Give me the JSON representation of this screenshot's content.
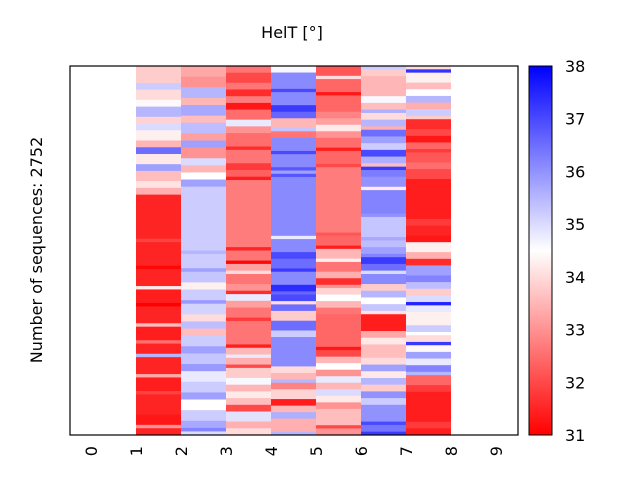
{
  "chart_data": {
    "type": "heatmap",
    "title": "HelT [°]",
    "xlabel": "",
    "ylabel": "Number of sequences: 2752",
    "n_rows": 2752,
    "x_ticks": [
      "0",
      "1",
      "2",
      "3",
      "4",
      "5",
      "6",
      "7",
      "8",
      "9"
    ],
    "x_range": [
      0,
      9
    ],
    "colorbar": {
      "min": 31,
      "max": 38,
      "ticks": [
        "31",
        "32",
        "33",
        "34",
        "35",
        "36",
        "37",
        "38"
      ],
      "colormap": "bwr_r",
      "low_color": "#ff0000",
      "mid_color": "#ffffff",
      "high_color": "#0000ff"
    },
    "columns": [
      {
        "x_start": 1,
        "x_end": 2,
        "segments": [
          [
            0.05,
            33.8
          ],
          [
            0.02,
            35.2
          ],
          [
            0.03,
            34.0
          ],
          [
            0.02,
            34.4
          ],
          [
            0.03,
            35.5
          ],
          [
            0.02,
            33.9
          ],
          [
            0.02,
            35.0
          ],
          [
            0.03,
            34.3
          ],
          [
            0.02,
            33.5
          ],
          [
            0.02,
            36.5
          ],
          [
            0.03,
            34.2
          ],
          [
            0.02,
            35.8
          ],
          [
            0.03,
            33.6
          ],
          [
            0.02,
            34.1
          ],
          [
            0.02,
            33.4
          ],
          [
            0.13,
            31.5
          ],
          [
            0.01,
            31.9
          ],
          [
            0.07,
            31.5
          ],
          [
            0.01,
            31.1
          ],
          [
            0.05,
            31.5
          ],
          [
            0.01,
            34.2
          ],
          [
            0.04,
            31.4
          ],
          [
            0.01,
            31.0
          ],
          [
            0.05,
            31.5
          ],
          [
            0.01,
            33.6
          ],
          [
            0.04,
            31.4
          ],
          [
            0.01,
            32.5
          ],
          [
            0.03,
            31.5
          ],
          [
            0.01,
            35.5
          ],
          [
            0.05,
            31.5
          ],
          [
            0.01,
            33.3
          ],
          [
            0.04,
            31.4
          ],
          [
            0.01,
            31.9
          ],
          [
            0.06,
            31.5
          ],
          [
            0.03,
            31.3
          ],
          [
            0.01,
            33.0
          ],
          [
            0.02,
            31.5
          ]
        ]
      },
      {
        "x_start": 2,
        "x_end": 3,
        "segments": [
          [
            0.03,
            33.3
          ],
          [
            0.03,
            33.0
          ],
          [
            0.03,
            35.5
          ],
          [
            0.02,
            33.5
          ],
          [
            0.03,
            35.7
          ],
          [
            0.02,
            33.6
          ],
          [
            0.03,
            35.4
          ],
          [
            0.02,
            33.2
          ],
          [
            0.02,
            35.8
          ],
          [
            0.03,
            33.0
          ],
          [
            0.02,
            35.0
          ],
          [
            0.02,
            33.5
          ],
          [
            0.02,
            34.5
          ],
          [
            0.02,
            35.8
          ],
          [
            0.18,
            35.2
          ],
          [
            0.01,
            35.5
          ],
          [
            0.04,
            35.2
          ],
          [
            0.01,
            35.8
          ],
          [
            0.03,
            35.3
          ],
          [
            0.02,
            34.3
          ],
          [
            0.03,
            35.2
          ],
          [
            0.01,
            35.9
          ],
          [
            0.03,
            35.1
          ],
          [
            0.02,
            34.0
          ],
          [
            0.02,
            35.4
          ],
          [
            0.02,
            33.6
          ],
          [
            0.03,
            35.2
          ],
          [
            0.02,
            35.8
          ],
          [
            0.03,
            35.3
          ],
          [
            0.02,
            35.9
          ],
          [
            0.03,
            34.8
          ],
          [
            0.03,
            35.2
          ],
          [
            0.02,
            35.8
          ],
          [
            0.03,
            34.5
          ],
          [
            0.03,
            35.2
          ],
          [
            0.02,
            35.7
          ],
          [
            0.01,
            36.2
          ],
          [
            0.01,
            35.0
          ]
        ]
      },
      {
        "x_start": 3,
        "x_end": 4,
        "segments": [
          [
            0.02,
            32.6
          ],
          [
            0.03,
            32.0
          ],
          [
            0.02,
            32.6
          ],
          [
            0.02,
            31.6
          ],
          [
            0.02,
            32.7
          ],
          [
            0.02,
            31.3
          ],
          [
            0.03,
            32.5
          ],
          [
            0.02,
            34.8
          ],
          [
            0.02,
            33.0
          ],
          [
            0.04,
            32.5
          ],
          [
            0.01,
            31.6
          ],
          [
            0.04,
            32.6
          ],
          [
            0.02,
            31.8
          ],
          [
            0.02,
            32.3
          ],
          [
            0.01,
            31.4
          ],
          [
            0.2,
            32.7
          ],
          [
            0.01,
            31.5
          ],
          [
            0.03,
            32.6
          ],
          [
            0.01,
            31.1
          ],
          [
            0.02,
            33.2
          ],
          [
            0.01,
            34.0
          ],
          [
            0.03,
            32.6
          ],
          [
            0.02,
            33.0
          ],
          [
            0.01,
            31.6
          ],
          [
            0.02,
            34.8
          ],
          [
            0.02,
            33.2
          ],
          [
            0.03,
            32.6
          ],
          [
            0.01,
            31.8
          ],
          [
            0.07,
            32.6
          ],
          [
            0.01,
            31.4
          ],
          [
            0.02,
            33.5
          ],
          [
            0.01,
            34.8
          ],
          [
            0.02,
            33.4
          ],
          [
            0.01,
            32.0
          ],
          [
            0.03,
            33.8
          ],
          [
            0.02,
            34.6
          ],
          [
            0.02,
            33.5
          ],
          [
            0.02,
            34.2
          ],
          [
            0.02,
            33.6
          ],
          [
            0.02,
            32.0
          ],
          [
            0.03,
            34.9
          ],
          [
            0.02,
            33.4
          ],
          [
            0.02,
            34.0
          ]
        ]
      },
      {
        "x_start": 4,
        "x_end": 5,
        "segments": [
          [
            0.02,
            34.6
          ],
          [
            0.05,
            36.1
          ],
          [
            0.01,
            37.0
          ],
          [
            0.04,
            36.1
          ],
          [
            0.02,
            37.2
          ],
          [
            0.02,
            36.6
          ],
          [
            0.03,
            33.5
          ],
          [
            0.01,
            35.3
          ],
          [
            0.02,
            32.6
          ],
          [
            0.04,
            36.1
          ],
          [
            0.01,
            37.0
          ],
          [
            0.04,
            36.1
          ],
          [
            0.01,
            36.8
          ],
          [
            0.01,
            35.8
          ],
          [
            0.01,
            36.8
          ],
          [
            0.18,
            36.1
          ],
          [
            0.01,
            34.8
          ],
          [
            0.04,
            36.1
          ],
          [
            0.02,
            37.0
          ],
          [
            0.03,
            36.5
          ],
          [
            0.01,
            37.2
          ],
          [
            0.04,
            36.1
          ],
          [
            0.02,
            37.4
          ],
          [
            0.01,
            36.6
          ],
          [
            0.02,
            37.0
          ],
          [
            0.01,
            34.0
          ],
          [
            0.02,
            36.5
          ],
          [
            0.03,
            33.8
          ],
          [
            0.03,
            36.5
          ],
          [
            0.02,
            35.2
          ],
          [
            0.09,
            36.1
          ],
          [
            0.02,
            34.0
          ],
          [
            0.02,
            33.5
          ],
          [
            0.01,
            35.5
          ],
          [
            0.02,
            32.8
          ],
          [
            0.03,
            33.9
          ],
          [
            0.02,
            31.4
          ],
          [
            0.02,
            33.5
          ],
          [
            0.02,
            35.6
          ],
          [
            0.04,
            33.4
          ],
          [
            0.01,
            35.5
          ]
        ]
      },
      {
        "x_start": 5,
        "x_end": 6,
        "segments": [
          [
            0.03,
            32.2
          ],
          [
            0.01,
            34.0
          ],
          [
            0.04,
            32.4
          ],
          [
            0.01,
            31.3
          ],
          [
            0.05,
            32.4
          ],
          [
            0.02,
            32.8
          ],
          [
            0.02,
            33.2
          ],
          [
            0.02,
            34.2
          ],
          [
            0.02,
            33.0
          ],
          [
            0.03,
            32.5
          ],
          [
            0.01,
            31.4
          ],
          [
            0.04,
            32.4
          ],
          [
            0.01,
            32.0
          ],
          [
            0.2,
            32.7
          ],
          [
            0.01,
            32.2
          ],
          [
            0.03,
            32.4
          ],
          [
            0.01,
            31.4
          ],
          [
            0.03,
            33.5
          ],
          [
            0.01,
            34.3
          ],
          [
            0.03,
            32.6
          ],
          [
            0.02,
            33.4
          ],
          [
            0.02,
            31.6
          ],
          [
            0.01,
            33.0
          ],
          [
            0.02,
            33.9
          ],
          [
            0.02,
            34.5
          ],
          [
            0.02,
            33.5
          ],
          [
            0.02,
            32.6
          ],
          [
            0.1,
            32.4
          ],
          [
            0.01,
            31.3
          ],
          [
            0.02,
            32.0
          ],
          [
            0.02,
            33.5
          ],
          [
            0.02,
            34.5
          ],
          [
            0.02,
            33.0
          ],
          [
            0.02,
            34.8
          ],
          [
            0.02,
            33.5
          ],
          [
            0.02,
            35.0
          ],
          [
            0.02,
            34.2
          ],
          [
            0.02,
            33.0
          ],
          [
            0.05,
            33.6
          ],
          [
            0.01,
            32.0
          ],
          [
            0.02,
            33.0
          ]
        ]
      },
      {
        "x_start": 6,
        "x_end": 7,
        "segments": [
          [
            0.01,
            35.2
          ],
          [
            0.02,
            33.8
          ],
          [
            0.06,
            33.5
          ],
          [
            0.02,
            34.6
          ],
          [
            0.02,
            33.6
          ],
          [
            0.01,
            35.6
          ],
          [
            0.02,
            34.0
          ],
          [
            0.02,
            35.5
          ],
          [
            0.01,
            33.4
          ],
          [
            0.02,
            36.5
          ],
          [
            0.02,
            35.8
          ],
          [
            0.02,
            35.2
          ],
          [
            0.02,
            37.0
          ],
          [
            0.02,
            35.6
          ],
          [
            0.01,
            33.6
          ],
          [
            0.01,
            37.2
          ],
          [
            0.02,
            36.3
          ],
          [
            0.03,
            36.0
          ],
          [
            0.01,
            34.2
          ],
          [
            0.07,
            36.2
          ],
          [
            0.01,
            36.0
          ],
          [
            0.06,
            35.3
          ],
          [
            0.01,
            35.7
          ],
          [
            0.02,
            35.4
          ],
          [
            0.02,
            35.8
          ],
          [
            0.01,
            36.2
          ],
          [
            0.02,
            37.2
          ],
          [
            0.02,
            36.5
          ],
          [
            0.01,
            35.0
          ],
          [
            0.03,
            36.1
          ],
          [
            0.02,
            33.8
          ],
          [
            0.02,
            35.5
          ],
          [
            0.02,
            34.5
          ],
          [
            0.02,
            35.3
          ],
          [
            0.01,
            34.1
          ],
          [
            0.05,
            31.4
          ],
          [
            0.02,
            33.3
          ],
          [
            0.02,
            34.2
          ],
          [
            0.04,
            33.6
          ],
          [
            0.02,
            34.0
          ],
          [
            0.02,
            35.8
          ],
          [
            0.02,
            34.2
          ],
          [
            0.02,
            35.5
          ],
          [
            0.02,
            33.8
          ],
          [
            0.02,
            36.0
          ],
          [
            0.02,
            35.2
          ],
          [
            0.05,
            36.0
          ],
          [
            0.01,
            37.0
          ],
          [
            0.02,
            36.4
          ],
          [
            0.01,
            37.2
          ]
        ]
      },
      {
        "x_start": 7,
        "x_end": 8,
        "segments": [
          [
            0.01,
            34.0
          ],
          [
            0.01,
            37.3
          ],
          [
            0.03,
            34.3
          ],
          [
            0.02,
            33.6
          ],
          [
            0.02,
            34.5
          ],
          [
            0.02,
            35.5
          ],
          [
            0.02,
            33.4
          ],
          [
            0.02,
            35.2
          ],
          [
            0.01,
            33.8
          ],
          [
            0.03,
            31.6
          ],
          [
            0.02,
            32.0
          ],
          [
            0.02,
            31.3
          ],
          [
            0.02,
            32.4
          ],
          [
            0.01,
            31.8
          ],
          [
            0.03,
            32.2
          ],
          [
            0.02,
            32.5
          ],
          [
            0.03,
            32.0
          ],
          [
            0.12,
            31.4
          ],
          [
            0.02,
            31.8
          ],
          [
            0.03,
            31.5
          ],
          [
            0.02,
            31.3
          ],
          [
            0.03,
            34.3
          ],
          [
            0.02,
            33.4
          ],
          [
            0.02,
            31.6
          ],
          [
            0.03,
            35.8
          ],
          [
            0.02,
            36.2
          ],
          [
            0.02,
            35.4
          ],
          [
            0.02,
            33.8
          ],
          [
            0.02,
            35.0
          ],
          [
            0.01,
            37.5
          ],
          [
            0.02,
            34.8
          ],
          [
            0.04,
            34.3
          ],
          [
            0.02,
            35.2
          ],
          [
            0.01,
            34.5
          ],
          [
            0.02,
            34.0
          ],
          [
            0.01,
            37.2
          ],
          [
            0.02,
            34.4
          ],
          [
            0.02,
            35.8
          ],
          [
            0.02,
            34.8
          ],
          [
            0.02,
            36.2
          ],
          [
            0.01,
            35.5
          ],
          [
            0.03,
            32.4
          ],
          [
            0.02,
            31.8
          ],
          [
            0.09,
            31.4
          ],
          [
            0.02,
            31.8
          ],
          [
            0.02,
            31.4
          ]
        ]
      }
    ]
  }
}
